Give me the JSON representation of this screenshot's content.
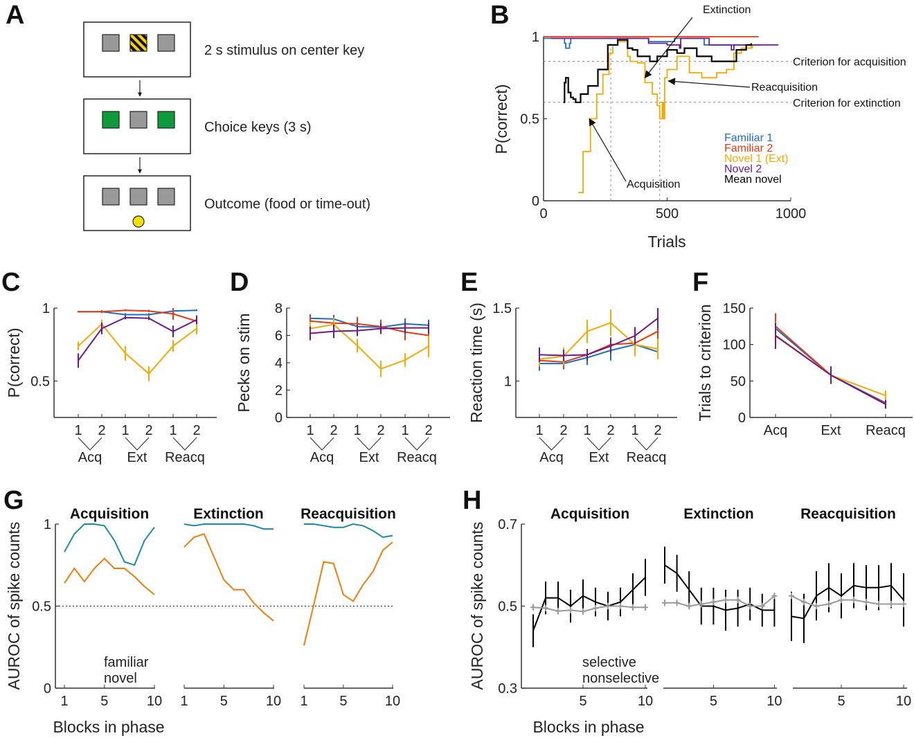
{
  "panel_labels": [
    "A",
    "B",
    "C",
    "D",
    "E",
    "F",
    "G",
    "H"
  ],
  "panel_a": {
    "steps": [
      {
        "text": "2 s stimulus on center key",
        "keys": [
          "gray",
          "striped",
          "gray"
        ]
      },
      {
        "text": "Choice keys (3 s)",
        "keys": [
          "green",
          "gray",
          "green"
        ]
      },
      {
        "text": "Outcome (food or time-out)",
        "keys": [
          "gray",
          "gray",
          "gray"
        ],
        "food": true
      }
    ],
    "colors": {
      "key": "#999999",
      "choice": "#0f9a3c",
      "stripe": "#f6d300",
      "food": "#f6e000"
    }
  },
  "chart_data": [
    {
      "id": "B",
      "type": "line",
      "xlabel": "Trials",
      "ylabel": "P(correct)",
      "xlim": [
        0,
        1000
      ],
      "ylim": [
        0,
        1
      ],
      "xticks": [
        "0",
        "500",
        "1000"
      ],
      "xtick_values": [
        0,
        500,
        1000
      ],
      "yticks": [
        "0",
        "0.5",
        "1"
      ],
      "ytick_values": [
        0,
        0.5,
        1
      ],
      "legend": "right",
      "reference_lines": [
        {
          "axis": "y",
          "value": 0.85,
          "label": "Criterion for acquisition"
        },
        {
          "axis": "y",
          "value": 0.6,
          "label": "Criterion for extinction"
        },
        {
          "axis": "x",
          "value": 272
        },
        {
          "axis": "x",
          "value": 470
        }
      ],
      "annotations": [
        {
          "text": "Extinction",
          "target": [
            410,
            0.75
          ]
        },
        {
          "text": "Acquisition",
          "target": [
            185,
            0.5
          ]
        },
        {
          "text": "Reacquisition",
          "target": [
            505,
            0.73
          ]
        }
      ],
      "series": [
        {
          "name": "Familiar 1",
          "color": "#1a6fc4",
          "x": [
            0,
            80,
            85,
            90,
            100,
            105,
            110,
            420,
            425,
            520,
            530,
            640,
            650,
            880
          ],
          "y": [
            0.99,
            0.99,
            0.96,
            0.93,
            0.93,
            0.96,
            0.99,
            0.99,
            0.97,
            0.97,
            0.99,
            0.99,
            0.95,
            0.95
          ]
        },
        {
          "name": "Familiar 2",
          "color": "#e8380d",
          "x": [
            0,
            870
          ],
          "y": [
            1.0,
            1.0
          ]
        },
        {
          "name": "Novel 1 (Ext)",
          "color": "#f5a800",
          "x": [
            140,
            160,
            190,
            215,
            240,
            265,
            280,
            300,
            330,
            340,
            350,
            380,
            410,
            440,
            460,
            470,
            480,
            485,
            490,
            500,
            530,
            540,
            580,
            590,
            640,
            700,
            740,
            770,
            800,
            840,
            845
          ],
          "y": [
            0.05,
            0.3,
            0.5,
            0.65,
            0.77,
            0.9,
            0.95,
            0.97,
            0.97,
            0.88,
            0.85,
            0.84,
            0.72,
            0.65,
            0.58,
            0.5,
            0.6,
            0.5,
            0.75,
            0.8,
            0.8,
            0.88,
            0.88,
            0.78,
            0.75,
            0.78,
            0.8,
            0.9,
            0.93,
            0.95,
            0.93
          ]
        },
        {
          "name": "Novel 2",
          "color": "#6a1a8a",
          "x": [
            30,
            420,
            425,
            500,
            550,
            555,
            660,
            670,
            750,
            760,
            770,
            950
          ],
          "y": [
            0.99,
            0.99,
            0.96,
            0.95,
            0.93,
            0.99,
            0.99,
            0.95,
            0.95,
            0.92,
            0.95,
            0.95
          ]
        },
        {
          "name": "Mean novel",
          "color": "#000000",
          "x": [
            80,
            85,
            90,
            100,
            110,
            120,
            130,
            150,
            180,
            220,
            260,
            300,
            320,
            340,
            360,
            380,
            430,
            460,
            500,
            540,
            570,
            620,
            680,
            740,
            780,
            820,
            840
          ],
          "y": [
            0.6,
            0.72,
            0.75,
            0.66,
            0.63,
            0.62,
            0.6,
            0.65,
            0.7,
            0.8,
            0.95,
            0.98,
            0.98,
            0.93,
            0.92,
            0.88,
            0.85,
            0.88,
            0.92,
            0.9,
            0.93,
            0.88,
            0.85,
            0.85,
            0.92,
            0.95,
            0.96
          ]
        }
      ]
    },
    {
      "id": "C",
      "type": "line",
      "ylabel": "P(correct)",
      "ylim": [
        0.25,
        1
      ],
      "yticks": [
        "0.5",
        "1"
      ],
      "ytick_values": [
        0.5,
        1
      ],
      "categories": [
        "1",
        "2",
        "1",
        "2",
        "1",
        "2"
      ],
      "groups": [
        "Acq",
        "Ext",
        "Reacq"
      ],
      "series": [
        {
          "color": "#1a6fc4",
          "values": [
            0.975,
            0.975,
            0.955,
            0.955,
            0.98,
            0.985
          ],
          "errors": [
            0.005,
            0.008,
            0.01,
            0.01,
            0.008,
            0.006
          ]
        },
        {
          "color": "#e8380d",
          "values": [
            0.975,
            0.975,
            0.985,
            0.98,
            0.96,
            0.91
          ],
          "errors": [
            0.005,
            0.01,
            0.006,
            0.008,
            0.04,
            0.02
          ]
        },
        {
          "color": "#f5a800",
          "values": [
            0.74,
            0.89,
            0.69,
            0.55,
            0.74,
            0.86
          ],
          "errors": [
            0.03,
            0.03,
            0.05,
            0.05,
            0.04,
            0.04
          ]
        },
        {
          "color": "#6a1a8a",
          "values": [
            0.64,
            0.86,
            0.935,
            0.93,
            0.84,
            0.92
          ],
          "errors": [
            0.05,
            0.04,
            0.012,
            0.012,
            0.04,
            0.03
          ]
        }
      ]
    },
    {
      "id": "D",
      "type": "line",
      "ylabel": "Pecks on stim",
      "ylim": [
        0,
        8
      ],
      "yticks": [
        "0",
        "2",
        "4",
        "6",
        "8"
      ],
      "ytick_values": [
        0,
        2,
        4,
        6,
        8
      ],
      "categories": [
        "1",
        "2",
        "1",
        "2",
        "1",
        "2"
      ],
      "groups": [
        "Acq",
        "Ext",
        "Reacq"
      ],
      "series": [
        {
          "color": "#1a6fc4",
          "values": [
            7.25,
            7.2,
            6.65,
            6.6,
            6.85,
            6.75
          ],
          "errors": [
            0.3,
            0.3,
            0.3,
            0.3,
            0.4,
            0.4
          ]
        },
        {
          "color": "#e8380d",
          "values": [
            7.05,
            6.9,
            6.85,
            6.65,
            6.25,
            6.0
          ],
          "errors": [
            0.4,
            0.4,
            0.5,
            0.5,
            0.6,
            0.6
          ]
        },
        {
          "color": "#f5a800",
          "values": [
            6.5,
            6.8,
            5.25,
            3.55,
            4.2,
            5.2
          ],
          "errors": [
            0.5,
            0.5,
            0.5,
            0.6,
            0.5,
            0.8
          ]
        },
        {
          "color": "#6a1a8a",
          "values": [
            6.15,
            6.3,
            6.35,
            6.5,
            6.55,
            6.55
          ],
          "errors": [
            0.5,
            0.5,
            0.4,
            0.4,
            0.4,
            0.4
          ]
        }
      ]
    },
    {
      "id": "E",
      "type": "line",
      "ylabel": "Reaction time (s)",
      "ylim": [
        0.75,
        1.5
      ],
      "yticks": [
        "1",
        "1.5"
      ],
      "ytick_values": [
        1,
        1.5
      ],
      "categories": [
        "1",
        "2",
        "1",
        "2",
        "1",
        "2"
      ],
      "groups": [
        "Acq",
        "Ext",
        "Reacq"
      ],
      "series": [
        {
          "color": "#1a6fc4",
          "values": [
            1.12,
            1.12,
            1.16,
            1.21,
            1.25,
            1.2
          ],
          "errors": [
            0.05,
            0.04,
            0.05,
            0.07,
            0.05,
            0.05
          ]
        },
        {
          "color": "#e8380d",
          "values": [
            1.14,
            1.13,
            1.18,
            1.25,
            1.26,
            1.34
          ],
          "errors": [
            0.04,
            0.04,
            0.04,
            0.05,
            0.05,
            0.08
          ]
        },
        {
          "color": "#f5a800",
          "values": [
            1.15,
            1.17,
            1.34,
            1.4,
            1.25,
            1.22
          ],
          "errors": [
            0.05,
            0.06,
            0.08,
            0.09,
            0.08,
            0.07
          ]
        },
        {
          "color": "#6a1a8a",
          "values": [
            1.18,
            1.175,
            1.18,
            1.24,
            1.31,
            1.43
          ],
          "errors": [
            0.05,
            0.04,
            0.04,
            0.05,
            0.06,
            0.07
          ]
        }
      ]
    },
    {
      "id": "F",
      "type": "line",
      "ylabel": "Trials to criterion",
      "ylim": [
        0,
        150
      ],
      "yticks": [
        "0",
        "50",
        "100",
        "150"
      ],
      "ytick_values": [
        0,
        50,
        100,
        150
      ],
      "categories": [
        "Acq",
        "Ext",
        "Reacq"
      ],
      "series": [
        {
          "color": "#1a6fc4",
          "values": [
            122,
            58,
            20
          ],
          "errors": [
            18,
            12,
            5
          ]
        },
        {
          "color": "#e8380d",
          "values": [
            125,
            58,
            19
          ],
          "errors": [
            18,
            12,
            5
          ]
        },
        {
          "color": "#f5a800",
          "values": [
            113,
            58,
            30
          ],
          "errors": [
            18,
            12,
            7
          ]
        },
        {
          "color": "#6a1a8a",
          "values": [
            112,
            58,
            18
          ],
          "errors": [
            18,
            12,
            6
          ]
        }
      ]
    },
    {
      "id": "G",
      "type": "line",
      "ylabel": "AUROC of spike counts",
      "xlabel": "Blocks in phase",
      "ylim": [
        0,
        1
      ],
      "yticks": [
        "0",
        "0.5",
        "1"
      ],
      "ytick_values": [
        0,
        0.5,
        1
      ],
      "xticks": [
        "1",
        "5",
        "10"
      ],
      "xtick_values": [
        1,
        5,
        10
      ],
      "reference_line": 0.5,
      "legend": [
        "familiar",
        "novel"
      ],
      "subplots": [
        {
          "title": "Acquisition",
          "series": [
            {
              "name": "familiar",
              "color": "#1a8aaa",
              "values": [
                0.83,
                0.94,
                1.0,
                1.0,
                0.99,
                0.9,
                0.77,
                0.75,
                0.9,
                0.98
              ]
            },
            {
              "name": "novel",
              "color": "#f07d0a",
              "values": [
                0.64,
                0.73,
                0.65,
                0.73,
                0.79,
                0.73,
                0.73,
                0.68,
                0.62,
                0.57
              ]
            }
          ]
        },
        {
          "title": "Extinction",
          "series": [
            {
              "name": "familiar",
              "color": "#1a8aaa",
              "values": [
                1.0,
                0.99,
                1.0,
                1.0,
                1.0,
                1.0,
                1.0,
                0.99,
                0.97,
                0.97
              ]
            },
            {
              "name": "novel",
              "color": "#f07d0a",
              "values": [
                0.86,
                0.92,
                0.94,
                0.8,
                0.66,
                0.6,
                0.6,
                0.52,
                0.46,
                0.41
              ]
            }
          ]
        },
        {
          "title": "Reacquisition",
          "series": [
            {
              "name": "familiar",
              "color": "#1a8aaa",
              "values": [
                1.0,
                1.0,
                0.99,
                0.98,
                0.98,
                1.0,
                0.99,
                0.96,
                0.92,
                0.93
              ]
            },
            {
              "name": "novel",
              "color": "#f07d0a",
              "values": [
                0.26,
                0.51,
                0.77,
                0.76,
                0.57,
                0.53,
                0.63,
                0.71,
                0.84,
                0.89
              ]
            }
          ]
        }
      ]
    },
    {
      "id": "H",
      "type": "line",
      "ylabel": "AUROC of spike counts",
      "xlabel": "Blocks in phase",
      "ylim": [
        0.3,
        0.7
      ],
      "yticks": [
        "0.3",
        "0.5",
        "0.7"
      ],
      "ytick_values": [
        0.3,
        0.5,
        0.7
      ],
      "xticks": [
        "5",
        "10"
      ],
      "xtick_values": [
        5,
        10
      ],
      "legend": [
        "selective",
        "nonselective"
      ],
      "subplots": [
        {
          "title": "Acquisition",
          "series": [
            {
              "name": "selective",
              "color": "#000000",
              "values": [
                0.44,
                0.52,
                0.52,
                0.5,
                0.525,
                0.51,
                0.5,
                0.51,
                0.54,
                0.57
              ],
              "errors": [
                0.04,
                0.04,
                0.04,
                0.04,
                0.04,
                0.035,
                0.035,
                0.035,
                0.04,
                0.045
              ]
            },
            {
              "name": "nonselective",
              "color": "#9a9a9a",
              "values": [
                0.497,
                0.495,
                0.488,
                0.49,
                0.487,
                0.495,
                0.5,
                0.5,
                0.497,
                0.497
              ],
              "errors": [
                0.008,
                0.008,
                0.008,
                0.008,
                0.008,
                0.008,
                0.008,
                0.008,
                0.008,
                0.008
              ]
            }
          ]
        },
        {
          "title": "Extinction",
          "series": [
            {
              "name": "selective",
              "color": "#000000",
              "values": [
                0.6,
                0.58,
                0.54,
                0.5,
                0.5,
                0.49,
                0.495,
                0.505,
                0.49,
                0.49
              ],
              "errors": [
                0.045,
                0.045,
                0.045,
                0.045,
                0.045,
                0.05,
                0.045,
                0.04,
                0.04,
                0.04
              ]
            },
            {
              "name": "nonselective",
              "color": "#9a9a9a",
              "values": [
                0.508,
                0.508,
                0.5,
                0.505,
                0.51,
                0.515,
                0.515,
                0.5,
                0.5,
                0.525
              ],
              "errors": [
                0.008,
                0.008,
                0.008,
                0.008,
                0.008,
                0.008,
                0.008,
                0.008,
                0.008,
                0.008
              ]
            }
          ]
        },
        {
          "title": "Reacquisition",
          "series": [
            {
              "name": "selective",
              "color": "#000000",
              "values": [
                0.475,
                0.47,
                0.525,
                0.545,
                0.525,
                0.55,
                0.545,
                0.545,
                0.55,
                0.515
              ],
              "errors": [
                0.06,
                0.06,
                0.06,
                0.06,
                0.055,
                0.055,
                0.055,
                0.055,
                0.055,
                0.065
              ]
            },
            {
              "name": "nonselective",
              "color": "#9a9a9a",
              "values": [
                0.525,
                0.51,
                0.5,
                0.505,
                0.515,
                0.515,
                0.51,
                0.505,
                0.505,
                0.505
              ],
              "errors": [
                0.008,
                0.008,
                0.008,
                0.008,
                0.008,
                0.008,
                0.008,
                0.008,
                0.008,
                0.008
              ]
            }
          ]
        }
      ]
    }
  ]
}
